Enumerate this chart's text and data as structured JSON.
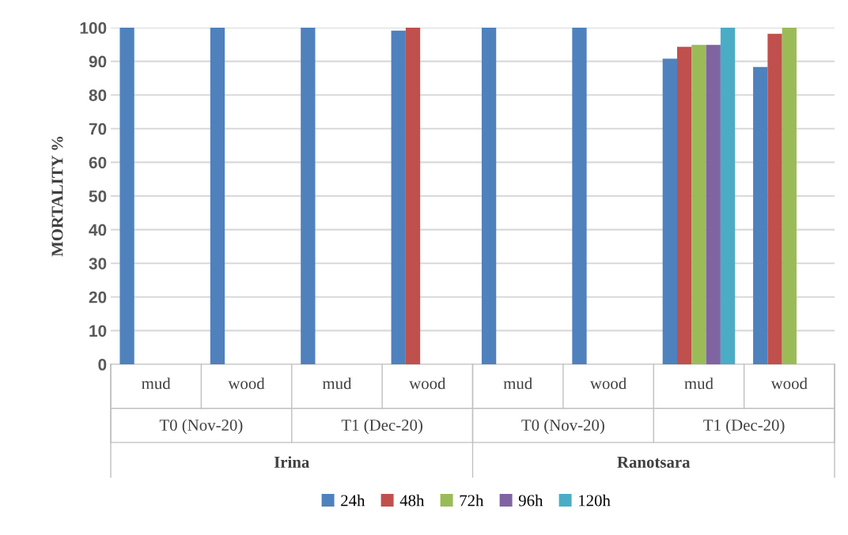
{
  "chart_data": {
    "type": "bar",
    "ylabel": "MORTALITY %",
    "categories": [
      "mud",
      "wood",
      "mud",
      "wood",
      "mud",
      "wood",
      "mud",
      "wood"
    ],
    "series": [
      {
        "name": "24h",
        "color": "#4f81bd",
        "values": [
          100,
          100,
          100,
          99.1,
          100,
          100,
          90.8,
          88.3
        ]
      },
      {
        "name": "48h",
        "color": "#c0504d",
        "values": [
          null,
          null,
          null,
          100,
          null,
          null,
          94.3,
          98.2
        ]
      },
      {
        "name": "72h",
        "color": "#9bbb59",
        "values": [
          null,
          null,
          null,
          null,
          null,
          null,
          94.9,
          100
        ]
      },
      {
        "name": "96h",
        "color": "#8064a2",
        "values": [
          null,
          null,
          null,
          null,
          null,
          null,
          94.9,
          null
        ]
      },
      {
        "name": "120h",
        "color": "#4bacc6",
        "values": [
          null,
          null,
          null,
          null,
          null,
          null,
          100,
          null
        ]
      }
    ],
    "annotations": [
      "T0 (Nov-20)",
      "T1 (Dec-20)",
      "T0 (Nov-20)",
      "T1 (Dec-20)",
      "Irina",
      "Ranotsara"
    ],
    "ylim": [
      0,
      100
    ],
    "yticks": [
      0,
      10,
      20,
      30,
      40,
      50,
      60,
      70,
      80,
      90,
      100
    ],
    "grid": "y",
    "legend": "bottom"
  }
}
